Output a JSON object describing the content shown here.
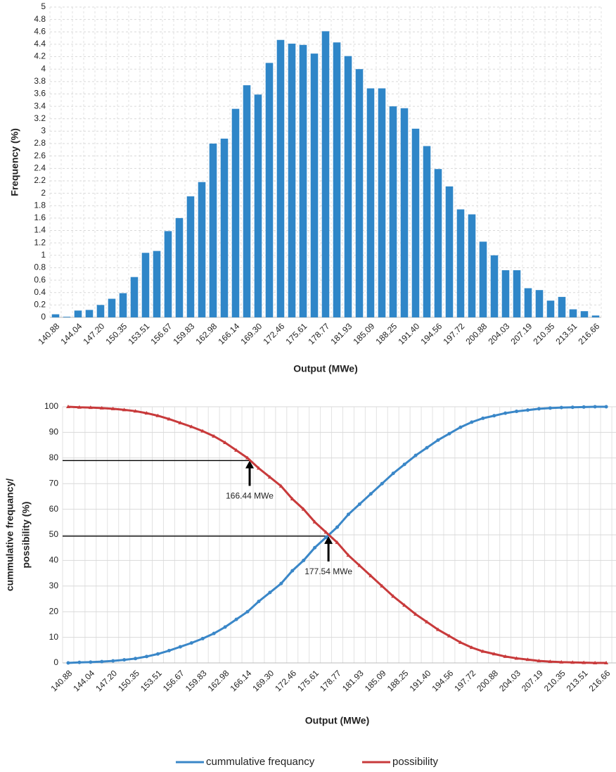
{
  "chart_data": [
    {
      "type": "bar",
      "x_label": "Output (MWe)",
      "y_label": "Frequency (%)",
      "categories": [
        "140.88",
        null,
        "144.04",
        null,
        "147.20",
        null,
        "150.35",
        null,
        "153.51",
        null,
        "156.67",
        null,
        "159.83",
        null,
        "162.98",
        null,
        "166.14",
        null,
        "169.30",
        null,
        "172.46",
        null,
        "175.61",
        null,
        "178.77",
        null,
        "181.93",
        null,
        "185.09",
        null,
        "188.25",
        null,
        "191.40",
        null,
        "194.56",
        null,
        "197.72",
        null,
        "200.88",
        null,
        "204.03",
        null,
        "207.19",
        null,
        "210.35",
        null,
        "213.51",
        null,
        "216.66"
      ],
      "values": [
        0.05,
        0.01,
        0.11,
        0.12,
        0.2,
        0.3,
        0.39,
        0.65,
        1.04,
        1.07,
        1.39,
        1.6,
        1.95,
        2.18,
        2.8,
        2.88,
        3.36,
        3.74,
        3.59,
        4.1,
        4.47,
        4.41,
        4.39,
        4.25,
        4.61,
        4.43,
        4.21,
        4.0,
        3.69,
        3.69,
        3.4,
        3.37,
        3.04,
        2.76,
        2.39,
        2.11,
        1.74,
        1.66,
        1.22,
        1.0,
        0.76,
        0.76,
        0.47,
        0.44,
        0.27,
        0.33,
        0.13,
        0.1,
        0.03
      ],
      "color": "#2f86c8",
      "ylim": [
        0,
        5
      ],
      "yticks": [
        0,
        0.2,
        0.4,
        0.6,
        0.8,
        1,
        1.2,
        1.4,
        1.6,
        1.8,
        2,
        2.2,
        2.4,
        2.6,
        2.8,
        3,
        3.2,
        3.4,
        3.6,
        3.8,
        4,
        4.2,
        4.4,
        4.6,
        4.8,
        5
      ],
      "grid": true
    },
    {
      "type": "line",
      "x_label": "Output (MWe)",
      "y_label": [
        "cummulative frequancy/",
        "possibility (%)"
      ],
      "categories": [
        "140.88",
        null,
        "144.04",
        null,
        "147.20",
        null,
        "150.35",
        null,
        "153.51",
        null,
        "156.67",
        null,
        "159.83",
        null,
        "162.98",
        null,
        "166.14",
        null,
        "169.30",
        null,
        "172.46",
        null,
        "175.61",
        null,
        "178.77",
        null,
        "181.93",
        null,
        "185.09",
        null,
        "188.25",
        null,
        "191.40",
        null,
        "194.56",
        null,
        "197.72",
        null,
        "200.88",
        null,
        "204.03",
        null,
        "207.19",
        null,
        "210.35",
        null,
        "213.51",
        null,
        "216.66"
      ],
      "series": [
        {
          "name": "cummulative frequancy",
          "color": "#3a87c8",
          "values": [
            0,
            0.2,
            0.3,
            0.5,
            0.8,
            1.2,
            1.7,
            2.5,
            3.5,
            4.8,
            6.3,
            7.8,
            9.5,
            11.5,
            14,
            17,
            20,
            24,
            27.5,
            31,
            36,
            40,
            45,
            49,
            53,
            58,
            62,
            66,
            70,
            74,
            77.5,
            81,
            84,
            87,
            89.5,
            92,
            94,
            95.5,
            96.5,
            97.5,
            98.2,
            98.7,
            99.2,
            99.5,
            99.7,
            99.8,
            99.9,
            100,
            100
          ]
        },
        {
          "name": "possibility",
          "color": "#c83a3b",
          "values": [
            100,
            99.8,
            99.7,
            99.5,
            99.2,
            98.8,
            98.3,
            97.5,
            96.5,
            95.2,
            93.7,
            92.2,
            90.5,
            88.5,
            86,
            83,
            80,
            76,
            72.5,
            69,
            64,
            60,
            55,
            51,
            47,
            42,
            38,
            34,
            30,
            26,
            22.5,
            19,
            16,
            13,
            10.5,
            8,
            6,
            4.5,
            3.5,
            2.5,
            1.8,
            1.3,
            0.8,
            0.5,
            0.3,
            0.2,
            0.1,
            0,
            0
          ]
        }
      ],
      "annotations": [
        {
          "text": "166.44 MWe",
          "x": 166.44,
          "y": 79
        },
        {
          "text": "177.54 MWe",
          "x": 177.54,
          "y": 49.5
        }
      ],
      "ylim": [
        0,
        100
      ],
      "yticks": [
        0,
        10,
        20,
        30,
        40,
        50,
        60,
        70,
        80,
        90,
        100
      ],
      "grid": true,
      "legend": "bottom"
    }
  ]
}
